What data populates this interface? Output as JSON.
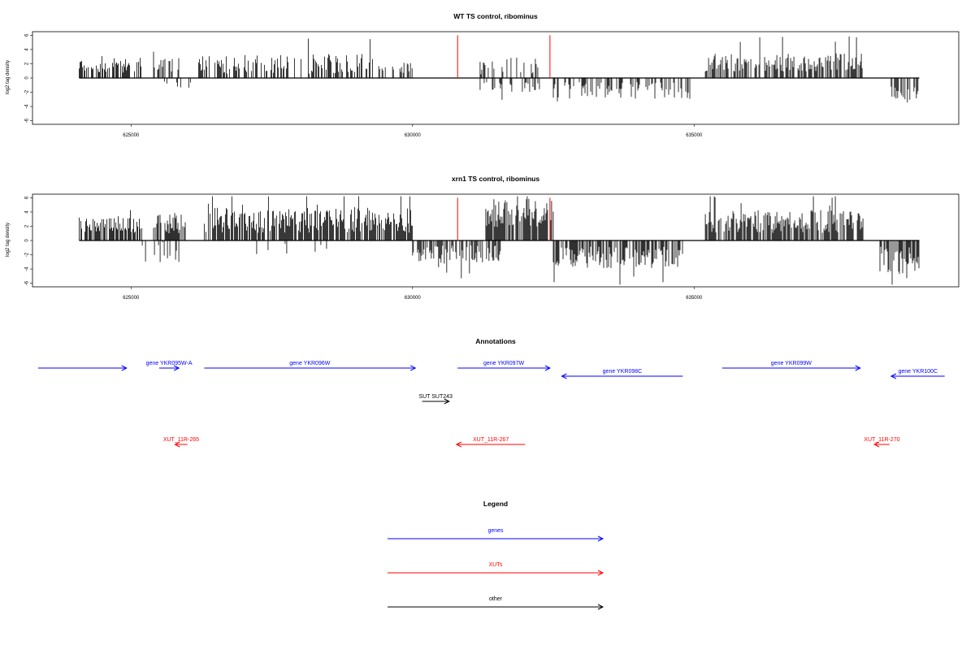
{
  "chart_data": [
    {
      "type": "bar",
      "title": "WT TS control, ribominus",
      "ylabel": "log2 tag density",
      "xlabel": "",
      "xlim": [
        623250,
        639700
      ],
      "ylim": [
        -6.5,
        6.5
      ],
      "xticks": [
        625000,
        630000,
        635000
      ],
      "yticks": [
        -6,
        -4,
        -2,
        0,
        2,
        4,
        6
      ],
      "grid": false,
      "markers": [
        {
          "x": 630800,
          "y": 6.0,
          "color": "#ff0000"
        },
        {
          "x": 632440,
          "y": 6.0,
          "color": "#ff0000"
        }
      ],
      "segments": [
        {
          "start": 624080,
          "end": 625200,
          "sign": 1,
          "mean": 1.5,
          "spread": 1.3,
          "density": 0.55,
          "seed": 11
        },
        {
          "start": 625400,
          "end": 625850,
          "sign": 1,
          "mean": 1.4,
          "spread": 1.5,
          "density": 0.4,
          "seed": 12
        },
        {
          "start": 625550,
          "end": 626150,
          "sign": -1,
          "mean": 0.8,
          "spread": 0.6,
          "density": 0.15,
          "seed": 13
        },
        {
          "start": 626200,
          "end": 629300,
          "sign": 1,
          "mean": 1.6,
          "spread": 1.8,
          "density": 0.5,
          "seed": 14
        },
        {
          "start": 629400,
          "end": 630000,
          "sign": 1,
          "mean": 1.2,
          "spread": 1.0,
          "density": 0.3,
          "seed": 15
        },
        {
          "start": 631200,
          "end": 632300,
          "sign": 1,
          "mean": 1.3,
          "spread": 1.6,
          "density": 0.3,
          "seed": 16
        },
        {
          "start": 631200,
          "end": 632300,
          "sign": -1,
          "mean": 1.0,
          "spread": 0.9,
          "density": 0.25,
          "seed": 17
        },
        {
          "start": 632500,
          "end": 635000,
          "sign": -1,
          "mean": 1.4,
          "spread": 1.5,
          "density": 0.45,
          "seed": 18
        },
        {
          "start": 635200,
          "end": 638000,
          "sign": 1,
          "mean": 1.8,
          "spread": 1.6,
          "density": 0.6,
          "seed": 19
        },
        {
          "start": 638500,
          "end": 639000,
          "sign": -1,
          "mean": 1.8,
          "spread": 1.4,
          "density": 0.7,
          "seed": 20
        }
      ]
    },
    {
      "type": "bar",
      "title": "xrn1 TS control, ribominus",
      "ylabel": "log2 tag density",
      "xlabel": "",
      "xlim": [
        623250,
        639700
      ],
      "ylim": [
        -6.5,
        6.5
      ],
      "xticks": [
        625000,
        630000,
        635000
      ],
      "yticks": [
        -6,
        -4,
        -2,
        0,
        2,
        4,
        6
      ],
      "grid": false,
      "markers": [
        {
          "x": 630800,
          "y": 6.0,
          "color": "#ff0000"
        },
        {
          "x": 632440,
          "y": 6.0,
          "color": "#ff0000"
        }
      ],
      "segments": [
        {
          "start": 624080,
          "end": 625200,
          "sign": 1,
          "mean": 1.8,
          "spread": 1.3,
          "density": 0.7,
          "seed": 31
        },
        {
          "start": 625200,
          "end": 625900,
          "sign": -1,
          "mean": 1.2,
          "spread": 1.8,
          "density": 0.3,
          "seed": 32
        },
        {
          "start": 625400,
          "end": 626000,
          "sign": 1,
          "mean": 2.0,
          "spread": 1.8,
          "density": 0.6,
          "seed": 33
        },
        {
          "start": 626300,
          "end": 630000,
          "sign": 1,
          "mean": 2.3,
          "spread": 2.2,
          "density": 0.75,
          "seed": 34
        },
        {
          "start": 627000,
          "end": 628500,
          "sign": -1,
          "mean": 0.8,
          "spread": 1.4,
          "density": 0.1,
          "seed": 35
        },
        {
          "start": 630000,
          "end": 631600,
          "sign": -1,
          "mean": 1.6,
          "spread": 1.6,
          "density": 0.6,
          "seed": 36
        },
        {
          "start": 631300,
          "end": 632500,
          "sign": 1,
          "mean": 3.3,
          "spread": 2.5,
          "density": 0.85,
          "seed": 37
        },
        {
          "start": 632500,
          "end": 634800,
          "sign": -1,
          "mean": 1.9,
          "spread": 1.9,
          "density": 0.65,
          "seed": 38
        },
        {
          "start": 635200,
          "end": 638000,
          "sign": 1,
          "mean": 2.2,
          "spread": 2.0,
          "density": 0.75,
          "seed": 39
        },
        {
          "start": 638300,
          "end": 639000,
          "sign": -1,
          "mean": 2.1,
          "spread": 2.5,
          "density": 0.8,
          "seed": 40
        }
      ]
    }
  ],
  "annotations": {
    "title": "Annotations",
    "features": [
      {
        "label": "",
        "start": 623350,
        "end": 624920,
        "strand": "+",
        "kind": "gene",
        "row": 0
      },
      {
        "label": "gene YKR095W-A",
        "start": 625500,
        "end": 625850,
        "strand": "+",
        "kind": "gene",
        "row": 0
      },
      {
        "label": "gene YKR096W",
        "start": 626300,
        "end": 630050,
        "strand": "+",
        "kind": "gene",
        "row": 0
      },
      {
        "label": "gene YKR097W",
        "start": 630800,
        "end": 632440,
        "strand": "+",
        "kind": "gene",
        "row": 0
      },
      {
        "label": "gene YKR098C",
        "start": 632650,
        "end": 634800,
        "strand": "-",
        "kind": "gene",
        "row": 1
      },
      {
        "label": "gene YKR099W",
        "start": 635500,
        "end": 637950,
        "strand": "+",
        "kind": "gene",
        "row": 0
      },
      {
        "label": "gene YKR100C",
        "start": 638500,
        "end": 639450,
        "strand": "-",
        "kind": "gene",
        "row": 1
      },
      {
        "label": "SUT SUT243",
        "start": 630170,
        "end": 630650,
        "strand": "+",
        "kind": "other",
        "row": 2
      },
      {
        "label": "XUT_11R-265",
        "start": 625780,
        "end": 626000,
        "strand": "-",
        "kind": "xut",
        "row": 3
      },
      {
        "label": "XUT_11R-267",
        "start": 630780,
        "end": 632000,
        "strand": "-",
        "kind": "xut",
        "row": 3
      },
      {
        "label": "XUT_11R-270",
        "start": 638200,
        "end": 638470,
        "strand": "-",
        "kind": "xut",
        "row": 3
      }
    ]
  },
  "legend": {
    "title": "Legend",
    "items": [
      {
        "label": "genes",
        "color": "#0000ff"
      },
      {
        "label": "XUTs",
        "color": "#ff0000"
      },
      {
        "label": "other",
        "color": "#000000"
      }
    ]
  }
}
